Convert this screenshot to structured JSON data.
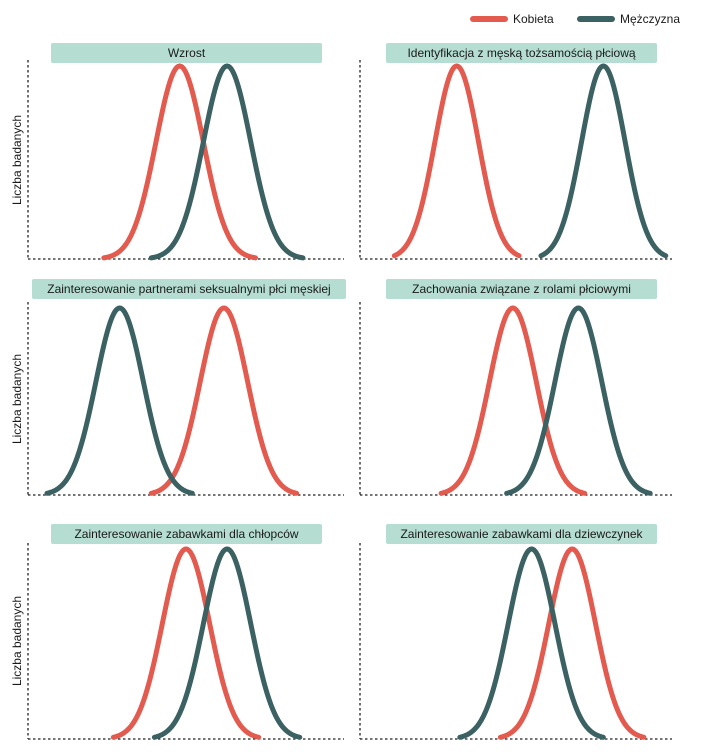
{
  "legend": {
    "female": {
      "label": "Kobieta",
      "color": "#e35a4f"
    },
    "male": {
      "label": "Mężczyzna",
      "color": "#3b6163"
    }
  },
  "chart_data": [
    {
      "type": "line",
      "title": "Wzrost",
      "ylabel": "Liczba badanych",
      "xlim": [
        0,
        100
      ],
      "ylim": [
        0,
        1
      ],
      "series": [
        {
          "name": "Kobieta",
          "mean": 48,
          "sd": 7.5,
          "range": [
            24,
            72
          ]
        },
        {
          "name": "Mężczyzna",
          "mean": 63,
          "sd": 7.5,
          "range": [
            39,
            87
          ]
        }
      ]
    },
    {
      "type": "line",
      "title": "Identyfikacja z męską tożsamością płciową",
      "ylabel": "",
      "xlim": [
        0,
        100
      ],
      "ylim": [
        0,
        1
      ],
      "series": [
        {
          "name": "Kobieta",
          "mean": 31,
          "sd": 7,
          "range": [
            11,
            51
          ]
        },
        {
          "name": "Mężczyzna",
          "mean": 78,
          "sd": 7,
          "range": [
            58,
            98
          ]
        }
      ]
    },
    {
      "type": "line",
      "title": "Zainteresowanie partnerami seksualnymi płci męskiej",
      "ylabel": "Liczba badanych",
      "xlim": [
        0,
        100
      ],
      "ylim": [
        0,
        1
      ],
      "series": [
        {
          "name": "Kobieta",
          "mean": 62,
          "sd": 7.5,
          "range": [
            39,
            85
          ]
        },
        {
          "name": "Mężczyzna",
          "mean": 29,
          "sd": 7.5,
          "range": [
            6,
            52
          ]
        }
      ]
    },
    {
      "type": "line",
      "title": "Zachowania związane z rolami płciowymi",
      "ylabel": "",
      "xlim": [
        0,
        100
      ],
      "ylim": [
        0,
        1
      ],
      "series": [
        {
          "name": "Kobieta",
          "mean": 49,
          "sd": 7.5,
          "range": [
            26,
            72
          ]
        },
        {
          "name": "Mężczyzna",
          "mean": 70,
          "sd": 7.5,
          "range": [
            47,
            93
          ]
        }
      ]
    },
    {
      "type": "line",
      "title": "Zainteresowanie zabawkami dla chłopców",
      "ylabel": "Liczba badanych",
      "xlim": [
        0,
        100
      ],
      "ylim": [
        0,
        1
      ],
      "series": [
        {
          "name": "Kobieta",
          "mean": 50,
          "sd": 7.5,
          "range": [
            27,
            73
          ]
        },
        {
          "name": "Mężczyzna",
          "mean": 63,
          "sd": 7.5,
          "range": [
            40,
            86
          ]
        }
      ]
    },
    {
      "type": "line",
      "title": "Zainteresowanie zabawkami dla dziewczynek",
      "ylabel": "",
      "xlim": [
        0,
        100
      ],
      "ylim": [
        0,
        1
      ],
      "series": [
        {
          "name": "Kobieta",
          "mean": 68,
          "sd": 7.5,
          "range": [
            45,
            91
          ]
        },
        {
          "name": "Mężczyzna",
          "mean": 55,
          "sd": 7.5,
          "range": [
            32,
            78
          ]
        }
      ]
    }
  ]
}
